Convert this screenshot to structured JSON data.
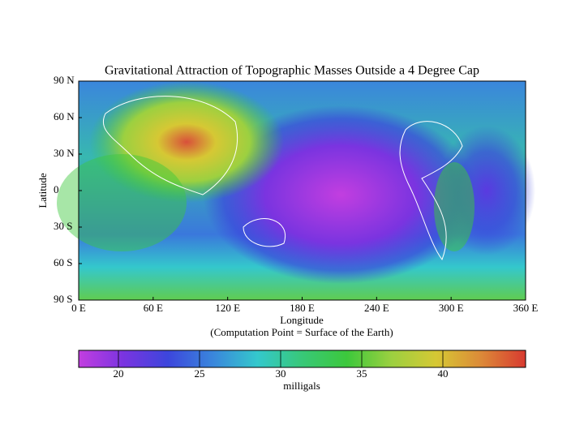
{
  "chart_data": {
    "type": "heatmap",
    "title": "Gravitational Attraction of Topographic Masses Outside a 4 Degree Cap",
    "x_label": "Longitude",
    "x_sublabel": "(Computation Point = Surface of the Earth)",
    "y_label": "Latitude",
    "xlim": [
      0,
      360
    ],
    "xticks": [
      {
        "value": 0,
        "label": "0 E"
      },
      {
        "value": 60,
        "label": "60 E"
      },
      {
        "value": 120,
        "label": "120 E"
      },
      {
        "value": 180,
        "label": "180 E"
      },
      {
        "value": 240,
        "label": "240 E"
      },
      {
        "value": 300,
        "label": "300 E"
      },
      {
        "value": 360,
        "label": "360 E"
      }
    ],
    "ylim": [
      -90,
      90
    ],
    "yticks": [
      {
        "value": 90,
        "label": "90 N"
      },
      {
        "value": 60,
        "label": "60 N"
      },
      {
        "value": 30,
        "label": "30 N"
      },
      0,
      {
        "value": -30,
        "label": "30 S"
      },
      {
        "value": -60,
        "label": "60 S"
      },
      {
        "value": -90,
        "label": "90 S"
      }
    ],
    "colorbar_label": "milligals",
    "clim": [
      17.55,
      45.1
    ],
    "cticks": [
      20,
      25,
      30,
      35,
      40
    ],
    "colormap": [
      "#c23ee0",
      "#7a34e0",
      "#3c46dc",
      "#3a86dc",
      "#34c8cc",
      "#38c878",
      "#3cc83c",
      "#9cd040",
      "#d6c834",
      "#dc8a38",
      "#d83a30"
    ]
  }
}
